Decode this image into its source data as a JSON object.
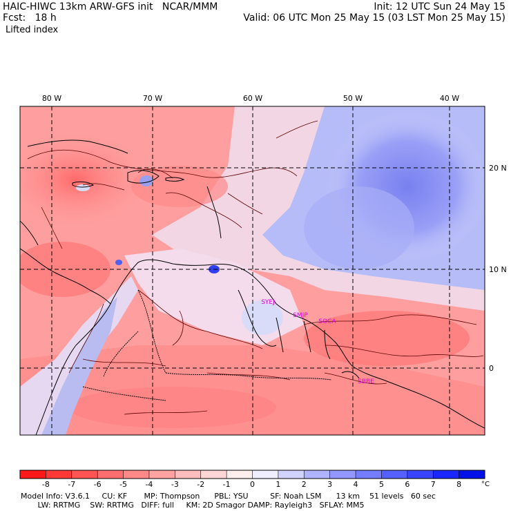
{
  "header": {
    "left_line1": "HAIC-HIWC 13km ARW-GFS init   NCAR/MMM",
    "left_line2": "Fcst:   18 h",
    "left_line3": "Lifted index",
    "right_line1": "Init: 12 UTC Sun 24 May 15",
    "right_line2": "Valid: 06 UTC Mon 25 May 15 (03 LST Mon 25 May 15)"
  },
  "map": {
    "lon_labels": [
      "80 W",
      "70 W",
      "60 W",
      "50 W",
      "40 W"
    ],
    "lat_labels": [
      "20 N",
      "10 N",
      "0"
    ],
    "stations": [
      "SYEJ",
      "SMJP",
      "SOCA",
      "SBBE"
    ]
  },
  "colorbar": {
    "unit": "°C",
    "ticks": [
      "-8",
      "-7",
      "-6",
      "-5",
      "-4",
      "-3",
      "-2",
      "-1",
      "0",
      "1",
      "2",
      "3",
      "4",
      "5",
      "6",
      "7",
      "8"
    ],
    "colors": [
      "#ff1a1a",
      "#ff3838",
      "#ff5454",
      "#ff6e6e",
      "#ff8888",
      "#ffa2a2",
      "#ffbcbc",
      "#ffd6d6",
      "#ffeeee",
      "#eeeeff",
      "#d0d2ff",
      "#b0b4ff",
      "#9298ff",
      "#747cff",
      "#5660ff",
      "#3844ff",
      "#1a26ff",
      "#0010e8"
    ]
  },
  "footer": {
    "line1": "Model Info: V3.6.1     CU: KF       MP: Thompson      PBL: YSU         SF: Noah LSM      13 km    51 levels   60 sec",
    "line2": "       LW: RRTMG    SW: RRTMG   DIFF: full     KM: 2D Smagor DAMP: Rayleigh3   SFLAY: MM5"
  }
}
